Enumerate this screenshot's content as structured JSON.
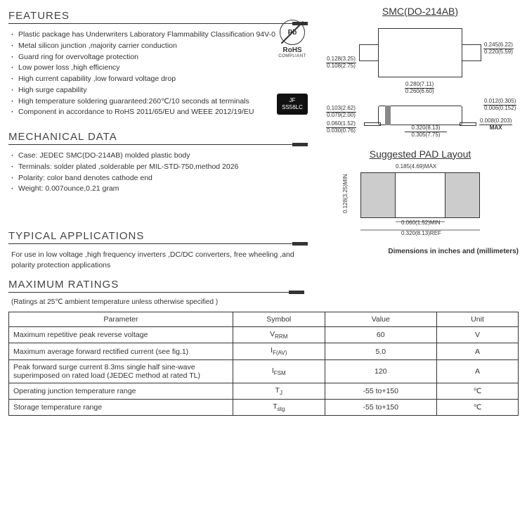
{
  "sections": {
    "features_title": "FEATURES",
    "mechanical_title": "MECHANICAL DATA",
    "typical_title": "TYPICAL  APPLICATIONS",
    "maximum_title": "MAXIMUM RATINGS"
  },
  "features": [
    "Plastic package has Underwriters Laboratory Flammability Classification 94V-0",
    "Metal silicon junction ,majority carrier conduction",
    "Guard ring for overvoltage protection",
    "Low power loss ,high efficiency",
    "High current capability ,low forward voltage drop",
    "High surge capability",
    "High temperature soldering guaranteed:260℃/10 seconds at terminals",
    "Component  in  accordance  to  RoHS  2011/65/EU  and   WEEE  2012/19/EU"
  ],
  "rohs": {
    "symbol": "Pb",
    "label": "RoHS",
    "sub": "COMPLIANT"
  },
  "chip": {
    "line1": "JF",
    "line2": "SS56LC"
  },
  "mechanical": [
    "Case: JEDEC SMC(DO-214AB)  molded plastic body",
    "Terminals: solder plated ,solderable per MIL-STD-750,method 2026",
    "Polarity: color band denotes cathode end",
    "Weight: 0.007ounce,0.21 gram"
  ],
  "typical_text": "For use in low voltage ,high frequency inverters ,DC/DC converters,  free wheeling ,and polarity protection applications",
  "package": {
    "title": "SMC(DO-214AB)",
    "pad_title": "Suggested PAD Layout",
    "dims_note": "Dimensions in inches and (millimeters)",
    "d_lead_w_t": "0.128(3.25)",
    "d_lead_w_b": "0.108(2.75)",
    "d_body_w_t": "0.280(7.11)",
    "d_body_w_b": "0.260(6.60)",
    "d_body_h_t": "0.245(6.22)",
    "d_body_h_b": "0.220(5.59)",
    "d_prof_h_t": "0.103(2.62)",
    "d_prof_h_b": "0.079(2.00)",
    "d_foot_t": "0.060(1.52)",
    "d_foot_b": "0.030(0.76)",
    "d_total_t": "0.320(8.13)",
    "d_total_b": "0.305(7.75)",
    "d_thick_t": "0.012(0.305)",
    "d_thick_b": "0.006(0.152)",
    "d_leadh_t": "0.008(0.203)",
    "d_leadh_b": "MAX",
    "pad_w": "0.185(4.69)MAX",
    "pad_h": "0.128(3.25)MIN",
    "pad_gap": "0.060(1.52)MIN",
    "pad_total": "0.320(8.13)REF"
  },
  "ratings_note": "(Ratings at 25℃ ambient temperature unless otherwise specified )",
  "ratings_headers": {
    "param": "Parameter",
    "symbol": "Symbol",
    "value": "Value",
    "unit": "Unit"
  },
  "ratings_rows": [
    {
      "param": "Maximum repetitive peak reverse voltage",
      "symbol": "V",
      "sub": "RRM",
      "value": "60",
      "unit": "V"
    },
    {
      "param": "Maximum average forward rectified current (see fig.1)",
      "symbol": "I",
      "sub": "F(AV)",
      "value": "5.0",
      "unit": "A"
    },
    {
      "param": "Peak forward surge current 8.3ms single half sine-wave superimposed on rated load (JEDEC method at rated TL)",
      "symbol": "I",
      "sub": "FSM",
      "value": "120",
      "unit": "A"
    },
    {
      "param": "Operating junction temperature range",
      "symbol": "T",
      "sub": "J",
      "value": "-55 to+150",
      "unit": "℃"
    },
    {
      "param": "Storage temperature range",
      "symbol": "T",
      "sub": "stg",
      "value": "-55 to+150",
      "unit": "℃"
    }
  ]
}
